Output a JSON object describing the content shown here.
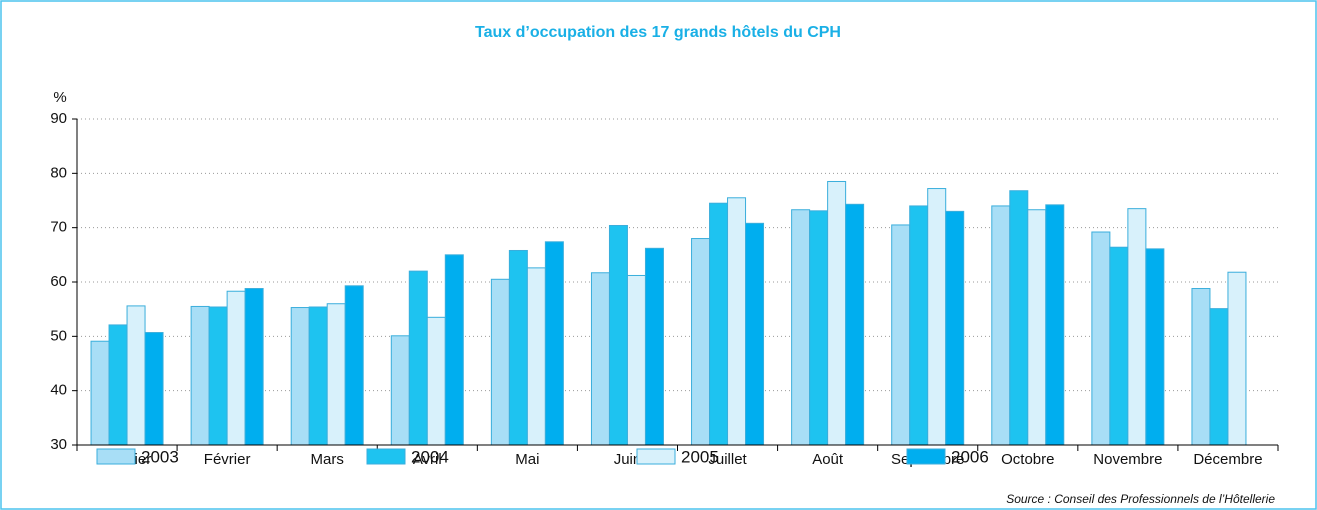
{
  "chart_data": {
    "type": "bar",
    "title": "Taux d’occupation des 17 grands hôtels du CPH",
    "y_label": "%",
    "source": "Source : Conseil des Professionnels de l’Hôtellerie",
    "categories": [
      "Janvier",
      "Février",
      "Mars",
      "Avril",
      "Mai",
      "Juin",
      "Juillet",
      "Août",
      "Septembre",
      "Octobre",
      "Novembre",
      "Décembre"
    ],
    "series": [
      {
        "name": "2003",
        "color": "#a8def6",
        "values": [
          49.1,
          55.5,
          55.3,
          50.1,
          60.5,
          61.7,
          68.0,
          73.3,
          70.5,
          74.0,
          69.2,
          58.8
        ]
      },
      {
        "name": "2004",
        "color": "#1ec3f0",
        "values": [
          52.1,
          55.4,
          55.4,
          62.0,
          65.8,
          70.4,
          74.5,
          73.1,
          74.0,
          76.8,
          66.4,
          55.1
        ]
      },
      {
        "name": "2005",
        "color": "#d8f1fb",
        "values": [
          55.6,
          58.3,
          56.0,
          53.5,
          62.6,
          61.2,
          75.5,
          78.5,
          77.2,
          73.3,
          73.5,
          61.8
        ]
      },
      {
        "name": "2006",
        "color": "#00aeef",
        "values": [
          50.7,
          58.8,
          59.3,
          65.0,
          67.4,
          66.2,
          70.8,
          74.3,
          73.0,
          74.2,
          66.1,
          null
        ]
      }
    ],
    "ylim": [
      30,
      90
    ],
    "yticks": [
      30,
      40,
      50,
      60,
      70,
      80,
      90
    ],
    "grid": true,
    "legend": "bottom"
  }
}
